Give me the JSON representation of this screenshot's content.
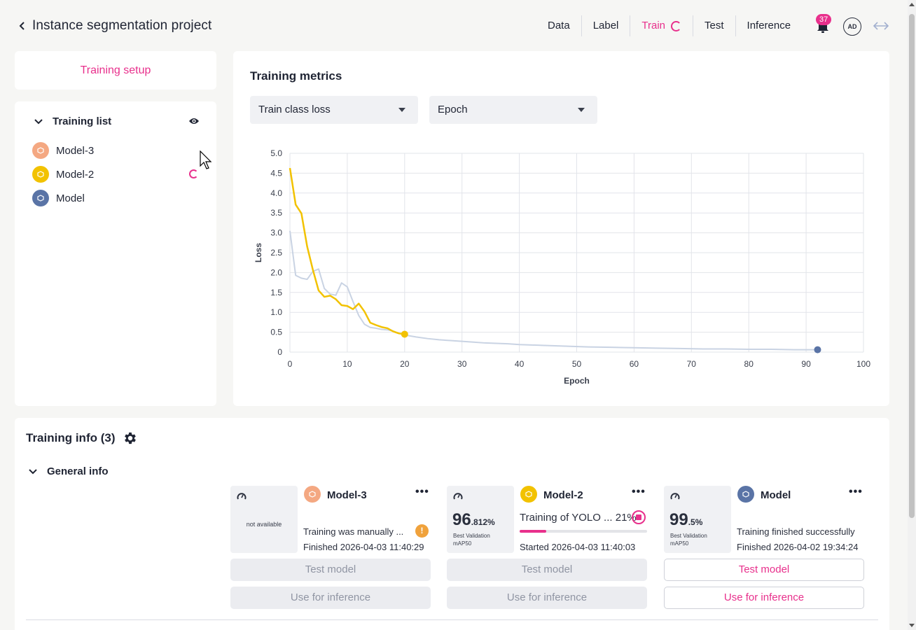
{
  "header": {
    "title": "Instance segmentation project",
    "nav": [
      "Data",
      "Label",
      "Train",
      "Test",
      "Inference"
    ],
    "active_nav": "Train",
    "notification_count": "37",
    "user_initials": "AD"
  },
  "sidebar": {
    "setup_label": "Training setup",
    "list_title": "Training list",
    "models": [
      {
        "name": "Model-3",
        "color": "#f4a882",
        "training": false
      },
      {
        "name": "Model-2",
        "color": "#f2c200",
        "training": true
      },
      {
        "name": "Model",
        "color": "#5a74a6",
        "training": false
      }
    ]
  },
  "metrics": {
    "title": "Training metrics",
    "metric_select": "Train class loss",
    "axis_select": "Epoch"
  },
  "chart_data": {
    "type": "line",
    "xlabel": "Epoch",
    "ylabel": "Loss",
    "xlim": [
      0,
      100
    ],
    "ylim": [
      0,
      5.0
    ],
    "x_ticks": [
      "0",
      "10",
      "20",
      "30",
      "40",
      "50",
      "60",
      "70",
      "80",
      "90",
      "100"
    ],
    "y_ticks": [
      "0",
      "0.5",
      "1.0",
      "1.5",
      "2.0",
      "2.5",
      "3.0",
      "3.5",
      "4.0",
      "4.5",
      "5.0"
    ],
    "grid": true,
    "series": [
      {
        "color": "#c9d3e3",
        "x": [
          0,
          1,
          2,
          3,
          4,
          5,
          6,
          7,
          8,
          9,
          10,
          11,
          12,
          13,
          14,
          15,
          16,
          17,
          18,
          19,
          20,
          22,
          24,
          26,
          28,
          30,
          32,
          34,
          36,
          38,
          40,
          44,
          48,
          52,
          56,
          60,
          64,
          68,
          72,
          76,
          80,
          84,
          88,
          92
        ],
        "y": [
          3.05,
          1.93,
          1.86,
          1.83,
          2.03,
          2.09,
          1.6,
          1.46,
          1.43,
          1.74,
          1.64,
          1.27,
          0.92,
          0.7,
          0.62,
          0.6,
          0.57,
          0.56,
          0.53,
          0.47,
          0.43,
          0.38,
          0.34,
          0.31,
          0.29,
          0.27,
          0.25,
          0.23,
          0.22,
          0.21,
          0.19,
          0.17,
          0.15,
          0.13,
          0.12,
          0.11,
          0.1,
          0.09,
          0.08,
          0.08,
          0.07,
          0.07,
          0.06,
          0.06
        ],
        "end_marker": true
      },
      {
        "color": "#f2c200",
        "x": [
          0,
          1,
          2,
          3,
          4,
          5,
          6,
          7,
          8,
          9,
          10,
          11,
          12,
          13,
          14,
          15,
          16,
          17,
          18,
          19,
          20
        ],
        "y": [
          4.63,
          3.71,
          3.49,
          2.66,
          2.07,
          1.55,
          1.39,
          1.42,
          1.33,
          1.18,
          1.16,
          1.08,
          1.22,
          1.02,
          0.74,
          0.68,
          0.63,
          0.6,
          0.52,
          0.47,
          0.45
        ],
        "end_marker": true
      }
    ]
  },
  "info": {
    "title": "Training info (3)",
    "section": "General info",
    "cards": [
      {
        "name": "Model-3",
        "color": "#f4a882",
        "metric_na": "not available",
        "status": "Training was manually ...",
        "time": "Finished 2026-04-03 11:40:29",
        "test_label": "Test model",
        "inference_label": "Use for inference"
      },
      {
        "name": "Model-2",
        "color": "#f2c200",
        "metric_int": "96",
        "metric_dec": ".812%",
        "metric_label": "Best Validation mAP50",
        "status": "Training of YOLO ... 21%",
        "progress": 0.21,
        "time": "Started 2026-04-03 11:40:03",
        "test_label": "Test model",
        "inference_label": "Use for inference"
      },
      {
        "name": "Model",
        "color": "#5a74a6",
        "metric_int": "99",
        "metric_dec": ".5%",
        "metric_label": "Best Validation mAP50",
        "status": "Training finished successfully",
        "time": "Finished 2026-04-02 19:34:24",
        "test_label": "Test model",
        "inference_label": "Use for inference"
      }
    ]
  }
}
